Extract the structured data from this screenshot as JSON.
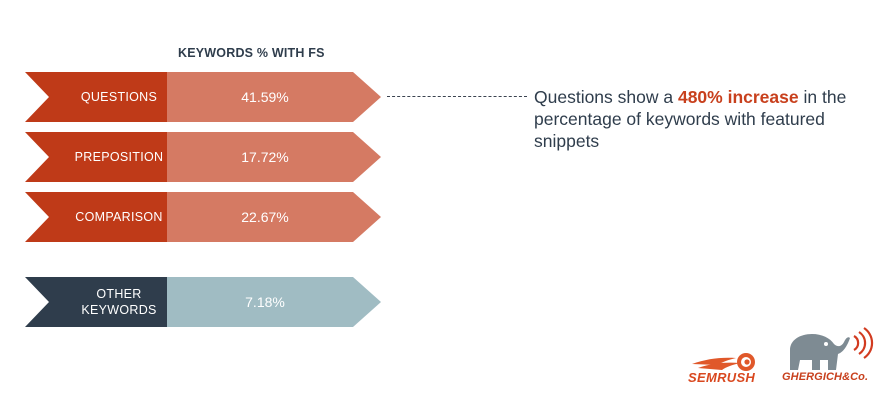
{
  "header": {
    "title": "KEYWORDS % WITH FS"
  },
  "rows": [
    {
      "label": "QUESTIONS",
      "value": "41.59%",
      "label_color": "#bf3a18",
      "value_color": "#d57a63"
    },
    {
      "label": "PREPOSITION",
      "value": "17.72%",
      "label_color": "#bf3a18",
      "value_color": "#d57a63"
    },
    {
      "label": "COMPARISON",
      "value": "22.67%",
      "label_color": "#bf3a18",
      "value_color": "#d57a63"
    },
    {
      "label": "OTHER KEYWORDS",
      "value": "7.18%",
      "label_color": "#2f3d4c",
      "value_color": "#a0bcc3"
    }
  ],
  "callout": {
    "pre": "Questions show a ",
    "highlight": "480% increase",
    "post": " in the percentage of keywords with featured snippets",
    "highlight_color": "#c8401d"
  },
  "logos": {
    "semrush": "SEMRUSH",
    "ghergich": "GHERGICH&Co."
  }
}
